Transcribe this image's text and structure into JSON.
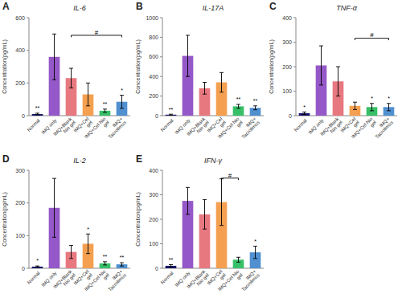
{
  "chart_data": [
    {
      "type": "bar",
      "label": "A",
      "title": "IL-6",
      "ylabel": "Concentration(pg/mL)",
      "categories": [
        "Normal",
        "IMQ only",
        "IMQ+Blank\nNio gel",
        "IMQ+Cel\ngel",
        "IMQ+Cel Nio\ngel",
        "IMQ+\nTacrolimus"
      ],
      "values": [
        10,
        360,
        230,
        130,
        30,
        85
      ],
      "errors": [
        5,
        140,
        60,
        70,
        10,
        40
      ],
      "colors": [
        "#18186A",
        "#9458C8",
        "#E87880",
        "#F4A050",
        "#38C068",
        "#5090D0"
      ],
      "ylim": [
        0,
        600
      ],
      "yticks": [
        0,
        200,
        400,
        600
      ],
      "annotations": [
        {
          "text": "**",
          "category": "Normal"
        },
        {
          "text": "**",
          "category": "IMQ+Cel Nio\ngel"
        },
        {
          "text": "*",
          "category": "IMQ+\nTacrolimus"
        }
      ],
      "brackets": [
        {
          "text": "#",
          "from": "IMQ+Blank\nNio gel",
          "to": "IMQ+\nTacrolimus",
          "y": 492
        }
      ]
    },
    {
      "type": "bar",
      "label": "B",
      "title": "IL-17A",
      "ylabel": "Concentration(pg/mL)",
      "categories": [
        "Normal",
        "IMQ only",
        "IMQ+Blank\nNio gel",
        "IMQ+Cel\ngel",
        "IMQ+Cel Nio\ngel",
        "IMQ+\nTacrolimus"
      ],
      "values": [
        10,
        610,
        280,
        340,
        95,
        80
      ],
      "errors": [
        5,
        210,
        60,
        100,
        20,
        20
      ],
      "colors": [
        "#18186A",
        "#9458C8",
        "#E87880",
        "#F4A050",
        "#38C068",
        "#5090D0"
      ],
      "ylim": [
        0,
        1000
      ],
      "yticks": [
        0,
        200,
        400,
        600,
        800,
        1000
      ],
      "annotations": [
        {
          "text": "**",
          "category": "Normal"
        },
        {
          "text": "**",
          "category": "IMQ+Cel Nio\ngel"
        },
        {
          "text": "**",
          "category": "IMQ+\nTacrolimus"
        }
      ]
    },
    {
      "type": "bar",
      "label": "C",
      "title": "TNF-α",
      "ylabel": "Concentration(pg/mL)",
      "categories": [
        "Normal",
        "IMQ only",
        "IMQ+Blank\nNio gel",
        "IMQ+Cel\ngel",
        "IMQ+Cel Nio\ngel",
        "IMQ+\nTacrolimus"
      ],
      "values": [
        10,
        205,
        140,
        40,
        35,
        35
      ],
      "errors": [
        5,
        80,
        60,
        15,
        15,
        15
      ],
      "colors": [
        "#18186A",
        "#9458C8",
        "#E87880",
        "#F4A050",
        "#38C068",
        "#5090D0"
      ],
      "ylim": [
        0,
        400
      ],
      "yticks": [
        0,
        100,
        200,
        300,
        400
      ],
      "annotations": [
        {
          "text": "*",
          "category": "Normal"
        },
        {
          "text": "*",
          "category": "IMQ+Cel Nio\ngel"
        },
        {
          "text": "*",
          "category": "IMQ+\nTacrolimus"
        }
      ],
      "brackets": [
        {
          "text": "#",
          "from": "IMQ+Cel\ngel",
          "to": "IMQ+\nTacrolimus",
          "y": 316
        }
      ]
    },
    {
      "type": "bar",
      "label": "D",
      "title": "IL-2",
      "ylabel": "Concentration(pg/mL)",
      "categories": [
        "Normal",
        "IMQ only",
        "IMQ+Blank\nNio gel",
        "IMQ+Cel\ngel",
        "IMQ+Cel Nio\ngel",
        "IMQ+\nTacrolimus"
      ],
      "values": [
        5,
        185,
        50,
        75,
        15,
        12
      ],
      "errors": [
        2,
        90,
        20,
        30,
        5,
        5
      ],
      "colors": [
        "#18186A",
        "#9458C8",
        "#E87880",
        "#F4A050",
        "#38C068",
        "#5090D0"
      ],
      "ylim": [
        0,
        300
      ],
      "yticks": [
        0,
        100,
        200,
        300
      ],
      "annotations": [
        {
          "text": "*",
          "category": "Normal"
        },
        {
          "text": "*",
          "category": "IMQ+Cel\ngel"
        },
        {
          "text": "**",
          "category": "IMQ+Cel Nio\ngel"
        },
        {
          "text": "**",
          "category": "IMQ+\nTacrolimus"
        }
      ]
    },
    {
      "type": "bar",
      "label": "E",
      "title": "IFN-γ",
      "ylabel": "Concentration(pg/mL)",
      "categories": [
        "Normal",
        "IMQ only",
        "IMQ+Blank\nNio gel",
        "IMQ+Cel\ngel",
        "IMQ+Cel Nio\ngel",
        "IMQ+\nTacrolimus"
      ],
      "values": [
        10,
        275,
        220,
        270,
        35,
        65
      ],
      "errors": [
        5,
        55,
        60,
        95,
        10,
        25
      ],
      "colors": [
        "#18186A",
        "#9458C8",
        "#E87880",
        "#F4A050",
        "#38C068",
        "#5090D0"
      ],
      "ylim": [
        0,
        400
      ],
      "yticks": [
        0,
        100,
        200,
        300,
        400
      ],
      "annotations": [
        {
          "text": "**",
          "category": "Normal"
        },
        {
          "text": "*",
          "category": "IMQ+\nTacrolimus"
        }
      ],
      "brackets": [
        {
          "text": "#",
          "from": "IMQ+Cel\ngel",
          "to": "IMQ+Cel Nio\ngel",
          "y": 368
        }
      ]
    }
  ]
}
